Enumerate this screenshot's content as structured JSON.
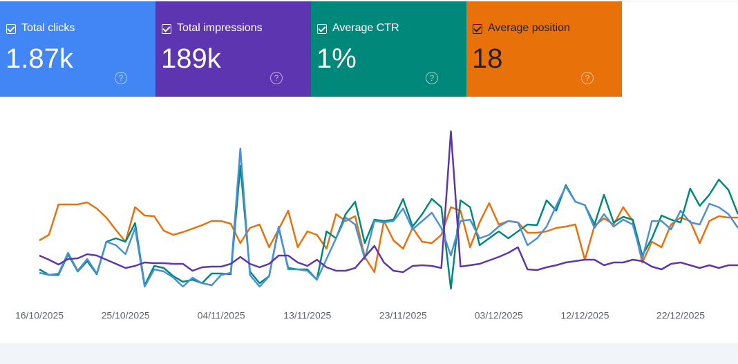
{
  "cards": [
    {
      "value": "1.87k"
    },
    {
      "value": "189k"
    },
    {
      "value": "1%"
    },
    {
      "value": "18"
    }
  ],
  "chart_data": {
    "type": "line",
    "categories": [
      "16/10/2025",
      null,
      null,
      null,
      null,
      null,
      null,
      null,
      null,
      "25/10/2025",
      null,
      null,
      null,
      null,
      null,
      null,
      null,
      null,
      null,
      "04/11/2025",
      null,
      null,
      null,
      null,
      null,
      null,
      null,
      null,
      "13/11/2025",
      null,
      null,
      null,
      null,
      null,
      null,
      null,
      null,
      null,
      "23/11/2025",
      null,
      null,
      null,
      null,
      null,
      null,
      null,
      null,
      null,
      "03/12/2025",
      null,
      null,
      null,
      null,
      null,
      null,
      null,
      null,
      "12/12/2025",
      null,
      null,
      null,
      null,
      null,
      null,
      null,
      null,
      null,
      "22/12/2025",
      null,
      null,
      null,
      null,
      null,
      null
    ],
    "ylim": [
      0,
      260
    ],
    "series": [
      {
        "name": "Total clicks",
        "color": "#4a90d9",
        "values": [
          35,
          32,
          34,
          64,
          38,
          55,
          34,
          80,
          75,
          62,
          100,
          15,
          40,
          37,
          28,
          15,
          28,
          20,
          17,
          32,
          35,
          215,
          32,
          15,
          30,
          102,
          40,
          40,
          38,
          25,
          55,
          85,
          115,
          105,
          55,
          110,
          108,
          110,
          128,
          98,
          110,
          122,
          100,
          60,
          110,
          112,
          85,
          90,
          102,
          110,
          108,
          75,
          85,
          102,
          132,
          160,
          138,
          133,
          100,
          120,
          102,
          112,
          105,
          55,
          110,
          110,
          98,
          125,
          108,
          105,
          135,
          130,
          120,
          100
        ]
      },
      {
        "name": "Total impressions",
        "color": "#5e35b1",
        "values": [
          60,
          54,
          47,
          55,
          56,
          62,
          60,
          54,
          48,
          42,
          45,
          50,
          49,
          49,
          48,
          48,
          38,
          43,
          44,
          44,
          48,
          58,
          48,
          43,
          48,
          60,
          60,
          50,
          45,
          54,
          43,
          38,
          38,
          42,
          58,
          74,
          50,
          38,
          36,
          45,
          46,
          45,
          42,
          240,
          44,
          46,
          48,
          53,
          58,
          64,
          72,
          40,
          39,
          43,
          46,
          50,
          52,
          54,
          54,
          46,
          50,
          50,
          54,
          52,
          44,
          40,
          48,
          50,
          46,
          42,
          46,
          42,
          46,
          46
        ]
      },
      {
        "name": "Average CTR",
        "color": "#00897b",
        "values": [
          40,
          32,
          32,
          62,
          37,
          52,
          33,
          80,
          85,
          80,
          107,
          17,
          45,
          42,
          30,
          22,
          25,
          20,
          34,
          34,
          33,
          190,
          37,
          20,
          30,
          100,
          42,
          40,
          40,
          25,
          95,
          85,
          120,
          138,
          78,
          112,
          110,
          112,
          142,
          102,
          120,
          142,
          130,
          12,
          140,
          130,
          75,
          85,
          95,
          85,
          95,
          105,
          104,
          140,
          125,
          162,
          138,
          133,
          105,
          148,
          108,
          116,
          112,
          60,
          85,
          118,
          112,
          108,
          157,
          132,
          148,
          170,
          155,
          120
        ]
      },
      {
        "name": "Average position",
        "color": "#e8710a",
        "values": [
          82,
          90,
          134,
          134,
          134,
          137,
          128,
          115,
          97,
          80,
          130,
          118,
          117,
          96,
          90,
          94,
          99,
          104,
          110,
          110,
          106,
          78,
          100,
          105,
          72,
          98,
          125,
          72,
          95,
          90,
          70,
          120,
          110,
          117,
          58,
          36,
          110,
          82,
          70,
          100,
          80,
          78,
          90,
          130,
          125,
          72,
          108,
          136,
          105,
          110,
          108,
          93,
          93,
          95,
          100,
          102,
          105,
          54,
          103,
          114,
          105,
          130,
          110,
          50,
          80,
          72,
          105,
          115,
          110,
          78,
          110,
          117,
          115,
          115
        ]
      }
    ]
  }
}
